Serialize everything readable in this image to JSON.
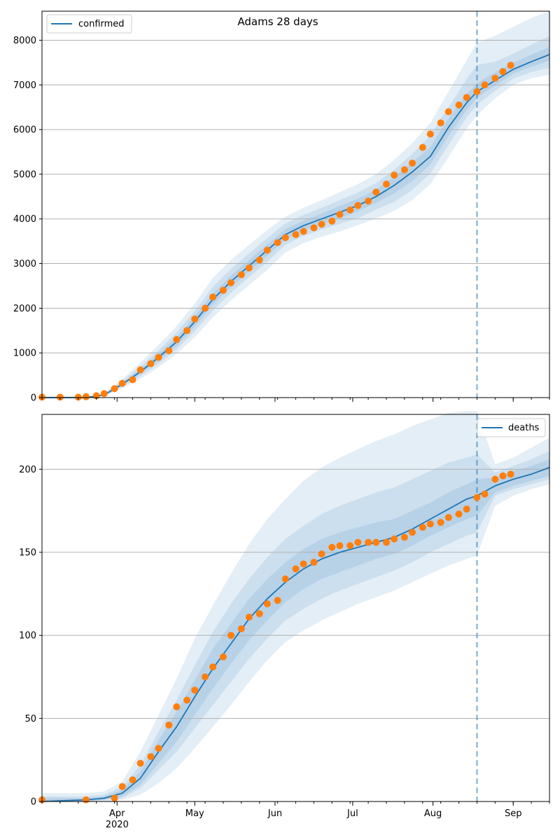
{
  "chart_data": [
    {
      "type": "line",
      "title": "Adams 28 days",
      "xlabel": "",
      "ylabel": "",
      "legend": "top-left",
      "grid": "horizontal",
      "xlim": [
        "2020-03-03",
        "2020-09-15"
      ],
      "ylim": [
        0,
        8650
      ],
      "yticks": [
        0,
        1000,
        2000,
        3000,
        4000,
        5000,
        6000,
        7000,
        8000
      ],
      "forecast_start": "2020-08-18",
      "series": [
        {
          "name": "confirmed",
          "kind": "line",
          "color": "#1f77b4",
          "x": [
            "2020-03-03",
            "2020-03-20",
            "2020-03-27",
            "2020-04-03",
            "2020-04-10",
            "2020-04-17",
            "2020-04-24",
            "2020-05-01",
            "2020-05-08",
            "2020-05-15",
            "2020-05-22",
            "2020-05-29",
            "2020-06-05",
            "2020-06-12",
            "2020-06-19",
            "2020-06-26",
            "2020-07-03",
            "2020-07-10",
            "2020-07-17",
            "2020-07-24",
            "2020-07-31",
            "2020-08-07",
            "2020-08-14",
            "2020-08-18",
            "2020-08-25",
            "2020-09-01",
            "2020-09-08",
            "2020-09-15"
          ],
          "y": [
            0,
            0,
            60,
            300,
            580,
            900,
            1250,
            1700,
            2200,
            2600,
            2950,
            3300,
            3650,
            3850,
            4000,
            4150,
            4300,
            4500,
            4750,
            5050,
            5400,
            6050,
            6600,
            6850,
            7100,
            7350,
            7520,
            7680
          ],
          "bands": [
            {
              "opacity": 0.12,
              "lower": [
                0,
                0,
                30,
                210,
                420,
                680,
                980,
                1350,
                1790,
                2180,
                2520,
                2860,
                3250,
                3460,
                3600,
                3720,
                3860,
                4010,
                4180,
                4420,
                4780,
                5380,
                6020,
                6320,
                6700,
                7000,
                7150,
                7230
              ],
              "upper": [
                30,
                30,
                110,
                410,
                790,
                1180,
                1600,
                2110,
                2680,
                3080,
                3420,
                3750,
                4050,
                4250,
                4420,
                4600,
                4780,
                5000,
                5320,
                5700,
                6150,
                6850,
                7550,
                7950,
                8100,
                8300,
                8500,
                8650
              ]
            },
            {
              "opacity": 0.12,
              "lower": [
                0,
                0,
                40,
                240,
                480,
                760,
                1080,
                1480,
                1950,
                2350,
                2700,
                3040,
                3420,
                3620,
                3760,
                3890,
                4020,
                4210,
                4380,
                4650,
                5020,
                5660,
                6280,
                6560,
                6870,
                7140,
                7290,
                7380
              ],
              "upper": [
                15,
                15,
                90,
                370,
                700,
                1060,
                1460,
                1940,
                2480,
                2880,
                3230,
                3570,
                3900,
                4090,
                4250,
                4420,
                4590,
                4800,
                5100,
                5460,
                5870,
                6500,
                7130,
                7450,
                7520,
                7700,
                7900,
                8100
              ]
            },
            {
              "opacity": 0.12,
              "lower": [
                0,
                0,
                50,
                270,
                530,
                830,
                1160,
                1590,
                2080,
                2480,
                2830,
                3180,
                3540,
                3740,
                3880,
                4020,
                4170,
                4360,
                4570,
                4850,
                5220,
                5860,
                6440,
                6710,
                6990,
                7250,
                7410,
                7540
              ],
              "upper": [
                8,
                8,
                75,
                340,
                640,
                980,
                1350,
                1820,
                2330,
                2730,
                3080,
                3430,
                3770,
                3960,
                4120,
                4290,
                4450,
                4660,
                4940,
                5270,
                5610,
                6250,
                6790,
                7040,
                7280,
                7500,
                7680,
                7850
              ]
            }
          ]
        },
        {
          "name": "",
          "kind": "scatter",
          "color": "#ff7f0e",
          "x": [
            "2020-03-03",
            "2020-03-10",
            "2020-03-17",
            "2020-03-20",
            "2020-03-24",
            "2020-03-27",
            "2020-03-31",
            "2020-04-03",
            "2020-04-07",
            "2020-04-10",
            "2020-04-14",
            "2020-04-17",
            "2020-04-21",
            "2020-04-24",
            "2020-04-28",
            "2020-05-01",
            "2020-05-05",
            "2020-05-08",
            "2020-05-12",
            "2020-05-15",
            "2020-05-19",
            "2020-05-22",
            "2020-05-26",
            "2020-05-29",
            "2020-06-02",
            "2020-06-05",
            "2020-06-09",
            "2020-06-12",
            "2020-06-16",
            "2020-06-19",
            "2020-06-23",
            "2020-06-26",
            "2020-06-30",
            "2020-07-03",
            "2020-07-07",
            "2020-07-10",
            "2020-07-14",
            "2020-07-17",
            "2020-07-21",
            "2020-07-24",
            "2020-07-28",
            "2020-07-31",
            "2020-08-04",
            "2020-08-07",
            "2020-08-11",
            "2020-08-14",
            "2020-08-18",
            "2020-08-21",
            "2020-08-25",
            "2020-08-28",
            "2020-08-31"
          ],
          "y": [
            10,
            10,
            10,
            20,
            40,
            90,
            200,
            320,
            400,
            620,
            760,
            900,
            1050,
            1300,
            1500,
            1760,
            2000,
            2250,
            2400,
            2570,
            2750,
            2900,
            3080,
            3300,
            3470,
            3580,
            3650,
            3720,
            3800,
            3880,
            3950,
            4100,
            4200,
            4300,
            4400,
            4600,
            4780,
            4980,
            5100,
            5250,
            5600,
            5900,
            6150,
            6400,
            6550,
            6720,
            6850,
            7000,
            7150,
            7300,
            7440
          ]
        }
      ]
    },
    {
      "type": "line",
      "title": "",
      "xlabel": "",
      "ylabel": "",
      "legend": "top-right",
      "grid": "horizontal",
      "xlim": [
        "2020-03-03",
        "2020-09-15"
      ],
      "ylim": [
        0,
        233
      ],
      "yticks": [
        0,
        50,
        100,
        150,
        200
      ],
      "forecast_start": "2020-08-18",
      "x_tick_labels": [
        "Apr",
        "May",
        "Jun",
        "Jul",
        "Aug",
        "Sep"
      ],
      "x_tick_dates": [
        "2020-04-01",
        "2020-05-01",
        "2020-06-01",
        "2020-07-01",
        "2020-08-01",
        "2020-09-01"
      ],
      "x_year_label": "2020",
      "series": [
        {
          "name": "deaths",
          "kind": "line",
          "color": "#1f77b4",
          "x": [
            "2020-03-03",
            "2020-03-20",
            "2020-03-27",
            "2020-04-03",
            "2020-04-10",
            "2020-04-17",
            "2020-04-24",
            "2020-05-01",
            "2020-05-08",
            "2020-05-15",
            "2020-05-22",
            "2020-05-29",
            "2020-06-05",
            "2020-06-12",
            "2020-06-19",
            "2020-06-26",
            "2020-07-03",
            "2020-07-10",
            "2020-07-17",
            "2020-07-24",
            "2020-07-31",
            "2020-08-07",
            "2020-08-14",
            "2020-08-18",
            "2020-08-25",
            "2020-09-01",
            "2020-09-08",
            "2020-09-15"
          ],
          "y": [
            0,
            1,
            2,
            5,
            14,
            30,
            45,
            63,
            80,
            95,
            110,
            122,
            132,
            140,
            146,
            150,
            153,
            156,
            159,
            164,
            170,
            176,
            182,
            184,
            190,
            194,
            197,
            201
          ],
          "bands": [
            {
              "opacity": 0.12,
              "lower": [
                0,
                0,
                0,
                1,
                4,
                11,
                20,
                32,
                45,
                58,
                72,
                85,
                96,
                103,
                109,
                114,
                119,
                123,
                127,
                132,
                137,
                142,
                146,
                148,
                178,
                184,
                188,
                191
              ],
              "upper": [
                5,
                5,
                6,
                12,
                30,
                52,
                74,
                98,
                118,
                137,
                155,
                170,
                182,
                193,
                201,
                207,
                212,
                217,
                221,
                226,
                230,
                234,
                235,
                235,
                203,
                207,
                213,
                219
              ]
            },
            {
              "opacity": 0.12,
              "lower": [
                0,
                0,
                1,
                2,
                8,
                19,
                30,
                44,
                58,
                72,
                86,
                98,
                109,
                116,
                122,
                127,
                131,
                135,
                139,
                144,
                150,
                155,
                160,
                162,
                184,
                188,
                191,
                194
              ],
              "upper": [
                3,
                3,
                4,
                9,
                22,
                42,
                61,
                82,
                102,
                119,
                134,
                147,
                158,
                166,
                173,
                178,
                182,
                186,
                189,
                194,
                199,
                204,
                207,
                209,
                198,
                202,
                206,
                211
              ]
            },
            {
              "opacity": 0.12,
              "lower": [
                0,
                0,
                1,
                3,
                10,
                23,
                36,
                52,
                68,
                83,
                97,
                109,
                120,
                128,
                134,
                138,
                142,
                146,
                149,
                154,
                160,
                165,
                170,
                172,
                186,
                190,
                193,
                196
              ],
              "upper": [
                2,
                2,
                3,
                7,
                18,
                37,
                54,
                73,
                92,
                107,
                122,
                134,
                144,
                152,
                158,
                162,
                165,
                168,
                170,
                175,
                180,
                186,
                191,
                194,
                195,
                199,
                202,
                206
              ]
            }
          ]
        },
        {
          "name": "",
          "kind": "scatter",
          "color": "#ff7f0e",
          "x": [
            "2020-03-03",
            "2020-03-20",
            "2020-03-31",
            "2020-04-03",
            "2020-04-07",
            "2020-04-10",
            "2020-04-14",
            "2020-04-17",
            "2020-04-21",
            "2020-04-24",
            "2020-04-28",
            "2020-05-01",
            "2020-05-05",
            "2020-05-08",
            "2020-05-12",
            "2020-05-15",
            "2020-05-19",
            "2020-05-22",
            "2020-05-26",
            "2020-05-29",
            "2020-06-02",
            "2020-06-05",
            "2020-06-09",
            "2020-06-12",
            "2020-06-16",
            "2020-06-19",
            "2020-06-23",
            "2020-06-26",
            "2020-06-30",
            "2020-07-03",
            "2020-07-07",
            "2020-07-10",
            "2020-07-14",
            "2020-07-17",
            "2020-07-21",
            "2020-07-24",
            "2020-07-28",
            "2020-07-31",
            "2020-08-04",
            "2020-08-07",
            "2020-08-11",
            "2020-08-14",
            "2020-08-18",
            "2020-08-21",
            "2020-08-25",
            "2020-08-28",
            "2020-08-31"
          ],
          "y": [
            1,
            1,
            2,
            9,
            13,
            23,
            27,
            32,
            46,
            57,
            61,
            67,
            75,
            81,
            87,
            100,
            104,
            111,
            113,
            119,
            121,
            134,
            140,
            143,
            144,
            149,
            153,
            154,
            154,
            156,
            156,
            156,
            156,
            158,
            159,
            162,
            165,
            167,
            168,
            171,
            173,
            176,
            183,
            185,
            194,
            196,
            197
          ]
        }
      ]
    }
  ]
}
